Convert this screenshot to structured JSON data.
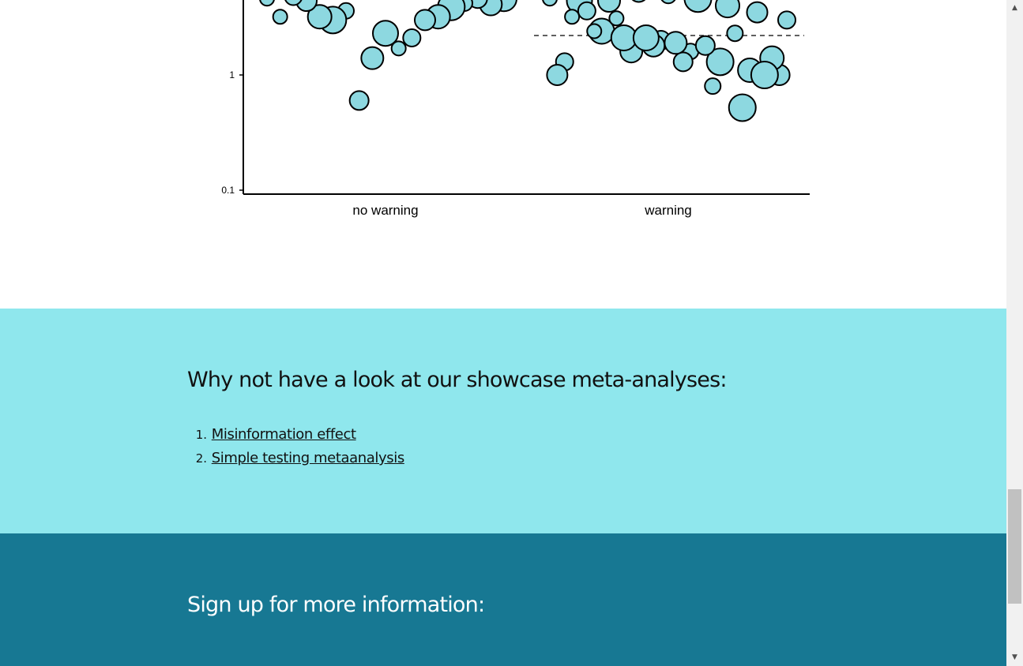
{
  "chart_data": {
    "type": "scatter",
    "y_scale": "log",
    "ylim": [
      0.1,
      8
    ],
    "yticks": [
      {
        "value": 1,
        "label": "1"
      },
      {
        "value": 0.1,
        "label": "0.1"
      }
    ],
    "categories": [
      "no warning",
      "warning"
    ],
    "reference_line": {
      "category": "warning",
      "value": 2.2,
      "style": "dashed"
    },
    "bubble_fill": "#8dd8e0",
    "series": [
      {
        "category": "no warning",
        "values": [
          4.6,
          4.6,
          4.1,
          4.6,
          4.2,
          3.9,
          3.2,
          3.0,
          2.1,
          1.7,
          2.3,
          1.4,
          0.6,
          3.6,
          3.0,
          3.2,
          4.4,
          4.8,
          3.2
        ]
      },
      {
        "category": "warning",
        "values": [
          4.6,
          4.4,
          4.4,
          5.2,
          4.9,
          4.6,
          4.0,
          3.5,
          3.0,
          3.2,
          2.4,
          1.6,
          2.0,
          1.6,
          1.3,
          1.1,
          1.0,
          1.3,
          2.4,
          2.1,
          1.8,
          1.3,
          0.8,
          0.52,
          1.4,
          1.0,
          3.6,
          3.1,
          2.1,
          1.9,
          1.8,
          2.3,
          1.0
        ]
      }
    ]
  },
  "showcase": {
    "heading": "Why not have a look at our showcase meta-analyses:",
    "items": [
      {
        "num": "1.",
        "label": "Misinformation effect"
      },
      {
        "num": "2.",
        "label": "Simple testing metaanalysis"
      }
    ]
  },
  "signup": {
    "heading": "Sign up for more information:"
  },
  "scrollbar": {
    "up_icon": "▲",
    "down_icon": "▼"
  }
}
